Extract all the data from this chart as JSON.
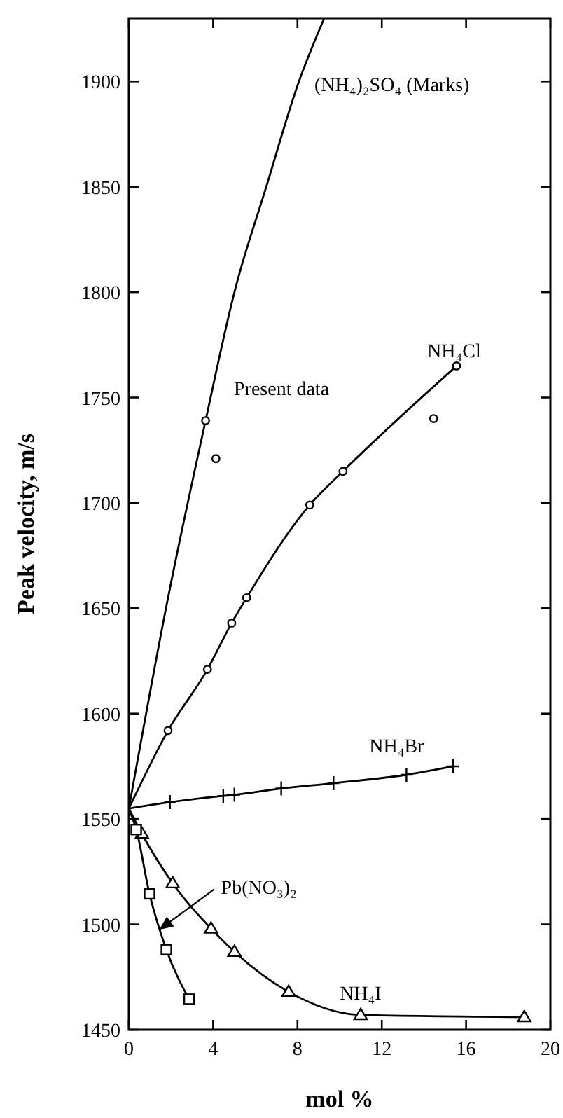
{
  "chart_data": {
    "type": "line",
    "xlabel": "mol %",
    "ylabel": "Peak velocity, m/s",
    "xlim": [
      0,
      20
    ],
    "ylim": [
      1450,
      1930
    ],
    "xticks": [
      0,
      4,
      8,
      12,
      16,
      20
    ],
    "yticks": [
      1450,
      1500,
      1550,
      1600,
      1650,
      1700,
      1750,
      1800,
      1850,
      1900
    ],
    "grid": false,
    "legend": false,
    "series": [
      {
        "name": "(NH₄)₂SO₄ (Marks)",
        "color": "#000000",
        "marker": "none",
        "x": [
          0,
          1.86,
          3.64,
          5.01,
          6.52,
          8.07,
          9.27
        ],
        "values": [
          1555,
          1655,
          1739,
          1800,
          1850,
          1900,
          1930
        ]
      },
      {
        "name": "NH₄Cl",
        "color": "#000000",
        "marker": "circle",
        "x": [
          0,
          1.86,
          3.73,
          4.88,
          5.59,
          8.58,
          10.16,
          15.55
        ],
        "values": [
          1555,
          1592,
          1621,
          1643,
          1655,
          1699,
          1715,
          1765
        ]
      },
      {
        "type": "scatter",
        "color": "#000000",
        "marker": "circle",
        "x": [
          3.64,
          4.13,
          14.46
        ],
        "values": [
          1739,
          1721,
          1740
        ]
      },
      {
        "name": "NH₄Br",
        "color": "#000000",
        "marker": "cross",
        "x": [
          0,
          1.95,
          4.48,
          5.01,
          7.23,
          9.71,
          13.17,
          15.39
        ],
        "values": [
          1555,
          1558,
          1561,
          1561.5,
          1564.5,
          1567,
          1571,
          1575
        ]
      },
      {
        "name": "NH₄I",
        "color": "#000000",
        "marker": "triangle",
        "x": [
          0,
          0.62,
          2.08,
          3.9,
          5.01,
          7.58,
          11.0,
          18.76
        ],
        "values": [
          1555,
          1543,
          1519.5,
          1498,
          1487,
          1468,
          1457,
          1456
        ]
      },
      {
        "name": "Pb(NO₃)₂",
        "color": "#000000",
        "marker": "square",
        "x": [
          0,
          0.35,
          0.98,
          1.78,
          2.86
        ],
        "values": [
          1555,
          1545,
          1514.5,
          1488,
          1464.5
        ]
      }
    ],
    "annotations": [
      "Present data"
    ]
  }
}
